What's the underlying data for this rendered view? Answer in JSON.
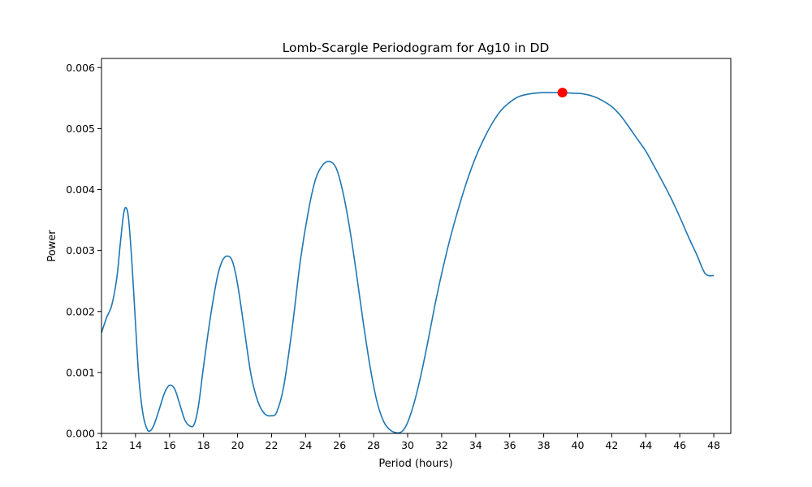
{
  "chart_data": {
    "type": "line",
    "title": "Lomb-Scargle Periodogram for Ag10 in DD",
    "xlabel": "Period (hours)",
    "ylabel": "Power",
    "xlim": [
      12,
      49
    ],
    "ylim": [
      0,
      0.00615
    ],
    "x_ticks": [
      12,
      14,
      16,
      18,
      20,
      22,
      24,
      26,
      28,
      30,
      32,
      34,
      36,
      38,
      40,
      42,
      44,
      46,
      48
    ],
    "y_ticks": [
      0.0,
      0.001,
      0.002,
      0.003,
      0.004,
      0.005,
      0.006
    ],
    "y_tick_labels": [
      "0.000",
      "0.001",
      "0.002",
      "0.003",
      "0.004",
      "0.005",
      "0.006"
    ],
    "grid": false,
    "series": [
      {
        "color": "#1f77b4",
        "points": [
          [
            12.0,
            0.00165
          ],
          [
            12.3,
            0.0019
          ],
          [
            12.6,
            0.0021
          ],
          [
            12.9,
            0.00255
          ],
          [
            13.1,
            0.0031
          ],
          [
            13.3,
            0.0036
          ],
          [
            13.45,
            0.0037
          ],
          [
            13.6,
            0.0035
          ],
          [
            13.8,
            0.00275
          ],
          [
            14.0,
            0.0018
          ],
          [
            14.2,
            0.0009
          ],
          [
            14.45,
            0.0003
          ],
          [
            14.7,
            6e-05
          ],
          [
            14.9,
            5e-05
          ],
          [
            15.1,
            0.00015
          ],
          [
            15.4,
            0.0004
          ],
          [
            15.7,
            0.00066
          ],
          [
            16.0,
            0.00079
          ],
          [
            16.3,
            0.00073
          ],
          [
            16.6,
            0.00048
          ],
          [
            16.9,
            0.00022
          ],
          [
            17.2,
            0.00012
          ],
          [
            17.45,
            0.00015
          ],
          [
            17.7,
            0.00045
          ],
          [
            18.0,
            0.0011
          ],
          [
            18.4,
            0.0019
          ],
          [
            18.8,
            0.00255
          ],
          [
            19.1,
            0.00283
          ],
          [
            19.4,
            0.00291
          ],
          [
            19.7,
            0.00282
          ],
          [
            20.0,
            0.00245
          ],
          [
            20.4,
            0.0017
          ],
          [
            20.8,
            0.00095
          ],
          [
            21.2,
            0.00052
          ],
          [
            21.6,
            0.00032
          ],
          [
            22.0,
            0.00029
          ],
          [
            22.3,
            0.00035
          ],
          [
            22.7,
            0.00075
          ],
          [
            23.2,
            0.0017
          ],
          [
            23.7,
            0.00285
          ],
          [
            24.2,
            0.0037
          ],
          [
            24.6,
            0.00418
          ],
          [
            25.0,
            0.0044
          ],
          [
            25.4,
            0.00446
          ],
          [
            25.8,
            0.00435
          ],
          [
            26.2,
            0.00395
          ],
          [
            26.6,
            0.00335
          ],
          [
            27.0,
            0.0026
          ],
          [
            27.4,
            0.0018
          ],
          [
            27.8,
            0.00108
          ],
          [
            28.2,
            0.00052
          ],
          [
            28.6,
            0.00019
          ],
          [
            29.0,
            5e-05
          ],
          [
            29.4,
            1e-05
          ],
          [
            29.7,
            4e-05
          ],
          [
            30.0,
            0.00018
          ],
          [
            30.4,
            0.00052
          ],
          [
            30.8,
            0.00098
          ],
          [
            31.2,
            0.00152
          ],
          [
            31.6,
            0.0021
          ],
          [
            32.0,
            0.00262
          ],
          [
            32.5,
            0.0032
          ],
          [
            33.0,
            0.0037
          ],
          [
            33.5,
            0.00415
          ],
          [
            34.0,
            0.00453
          ],
          [
            34.5,
            0.00484
          ],
          [
            35.0,
            0.0051
          ],
          [
            35.5,
            0.0053
          ],
          [
            36.0,
            0.00543
          ],
          [
            36.5,
            0.00552
          ],
          [
            37.0,
            0.00556
          ],
          [
            37.5,
            0.00558
          ],
          [
            38.0,
            0.00559
          ],
          [
            38.5,
            0.00559
          ],
          [
            39.1,
            0.00559
          ],
          [
            39.7,
            0.00558
          ],
          [
            40.3,
            0.00557
          ],
          [
            41.0,
            0.00552
          ],
          [
            41.5,
            0.00545
          ],
          [
            42.0,
            0.00536
          ],
          [
            42.5,
            0.00522
          ],
          [
            43.0,
            0.00503
          ],
          [
            43.5,
            0.00483
          ],
          [
            44.0,
            0.00463
          ],
          [
            44.5,
            0.00438
          ],
          [
            45.0,
            0.00412
          ],
          [
            45.5,
            0.00385
          ],
          [
            46.0,
            0.00355
          ],
          [
            46.5,
            0.00323
          ],
          [
            47.0,
            0.00293
          ],
          [
            47.5,
            0.00262
          ],
          [
            48.0,
            0.00259
          ]
        ]
      }
    ],
    "markers": [
      {
        "x": 39.1,
        "y": 0.00559,
        "color": "#ff0000"
      }
    ]
  }
}
